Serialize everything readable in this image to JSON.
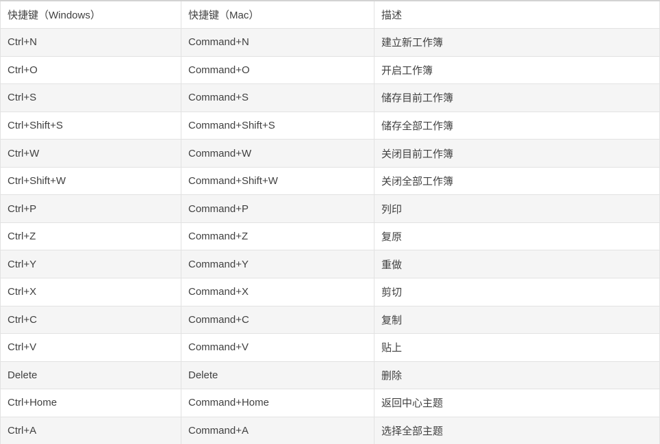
{
  "table": {
    "columns": {
      "windows": "快捷键（Windows）",
      "mac": "快捷键（Mac）",
      "description": "描述"
    },
    "rows": [
      {
        "win": "Ctrl+N",
        "mac": "Command+N",
        "desc": "建立新工作簿"
      },
      {
        "win": "Ctrl+O",
        "mac": "Command+O",
        "desc": "开启工作簿"
      },
      {
        "win": "Ctrl+S",
        "mac": "Command+S",
        "desc": "储存目前工作簿"
      },
      {
        "win": "Ctrl+Shift+S",
        "mac": "Command+Shift+S",
        "desc": "储存全部工作簿"
      },
      {
        "win": "Ctrl+W",
        "mac": "Command+W",
        "desc": "关闭目前工作簿"
      },
      {
        "win": "Ctrl+Shift+W",
        "mac": "Command+Shift+W",
        "desc": "关闭全部工作簿"
      },
      {
        "win": "Ctrl+P",
        "mac": "Command+P",
        "desc": "列印"
      },
      {
        "win": "Ctrl+Z",
        "mac": "Command+Z",
        "desc": "复原"
      },
      {
        "win": "Ctrl+Y",
        "mac": "Command+Y",
        "desc": "重做"
      },
      {
        "win": "Ctrl+X",
        "mac": "Command+X",
        "desc": "剪切"
      },
      {
        "win": "Ctrl+C",
        "mac": "Command+C",
        "desc": "复制"
      },
      {
        "win": "Ctrl+V",
        "mac": "Command+V",
        "desc": "贴上"
      },
      {
        "win": "Delete",
        "mac": "Delete",
        "desc": "删除"
      },
      {
        "win": "Ctrl+Home",
        "mac": "Command+Home",
        "desc": "返回中心主题"
      },
      {
        "win": "Ctrl+A",
        "mac": "Command+A",
        "desc": "选择全部主题"
      }
    ],
    "colors": {
      "text": "#404040",
      "border": "#e2e2e2",
      "top_border": "#d2d2d2",
      "stripe_row_bg": "#f5f5f5",
      "row_bg": "#ffffff"
    }
  }
}
